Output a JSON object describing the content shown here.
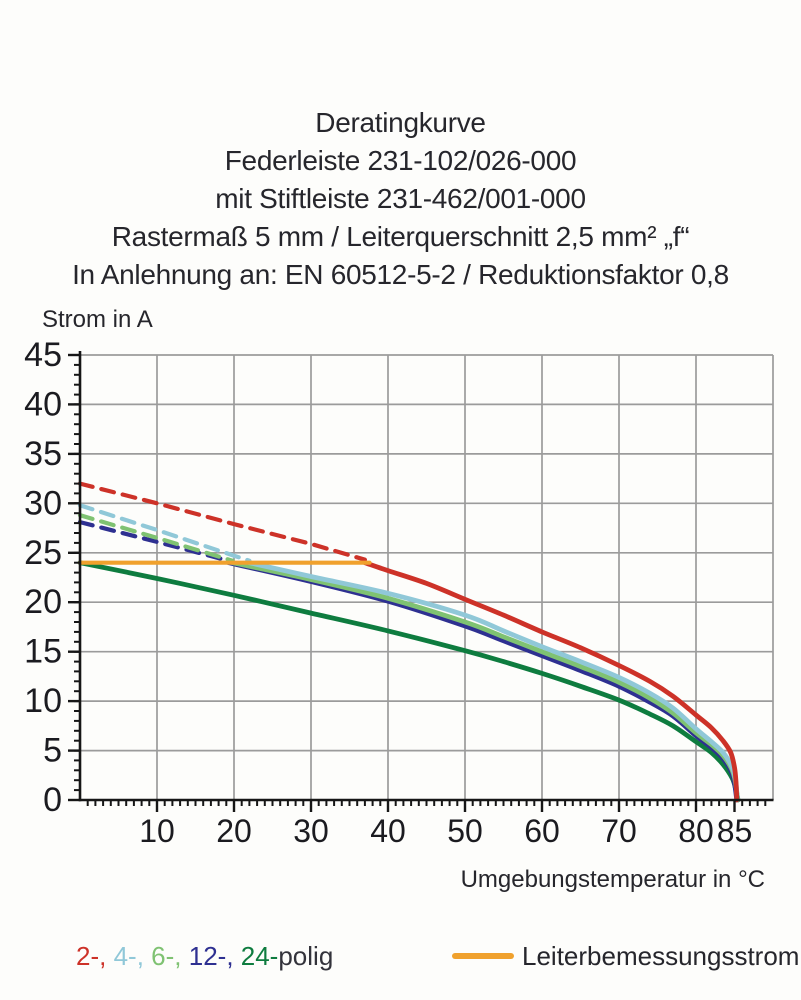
{
  "title": {
    "lines": [
      "Deratingkurve",
      "Federleiste 231-102/026-000",
      "mit Stiftleiste 231-462/001-000",
      "Rastermaß 5 mm / Leiterquerschnitt 2,5 mm² „f“",
      "In Anlehnung an: EN 60512-5-2 / Reduktionsfaktor 0,8"
    ]
  },
  "axes": {
    "y_label": "Strom in A",
    "x_label": "Umgebungstemperatur in °C"
  },
  "legend": {
    "poles": [
      {
        "text": "2-, ",
        "color": "#cd3228"
      },
      {
        "text": "4-, ",
        "color": "#90c8d8"
      },
      {
        "text": "6-, ",
        "color": "#7fc272"
      },
      {
        "text": "12-, ",
        "color": "#2e3091"
      },
      {
        "text": "24-",
        "color": "#0e7c3f"
      },
      {
        "text": "polig",
        "color": "#33333b"
      }
    ],
    "rated_label": "Leiterbemessungsstrom",
    "rated_color": "#f0a12d"
  },
  "chart_data": {
    "type": "line",
    "title": "Deratingkurve Federleiste 231-102/026-000 mit Stiftleiste 231-462/001-000",
    "xlabel": "Umgebungstemperatur in °C",
    "ylabel": "Strom in A",
    "xlim": [
      0,
      90
    ],
    "ylim": [
      0,
      45
    ],
    "grid": true,
    "grid_color": "#9b9b9b",
    "axis_color": "#161616",
    "x_axis": {
      "major_ticks": [
        10,
        20,
        30,
        40,
        50,
        60,
        70,
        80,
        85
      ],
      "minor_step": 1,
      "minor_max": 89,
      "grid_step": 10,
      "grid_max": 80,
      "right_border": 90
    },
    "y_axis": {
      "major_ticks": [
        0,
        5,
        10,
        15,
        20,
        25,
        30,
        35,
        40,
        45
      ],
      "minor_step": 1,
      "grid_step": 5
    },
    "rated_current": {
      "name": "Leiterbemessungsstrom",
      "value": 24,
      "x_range": [
        0,
        37.6
      ],
      "color": "#f0a12d"
    },
    "series": [
      {
        "name": "24-polig",
        "color": "#0e7c3f",
        "solid": [
          [
            0,
            24
          ],
          [
            10,
            22.4
          ],
          [
            20,
            20.7
          ],
          [
            30,
            18.9
          ],
          [
            40,
            17.1
          ],
          [
            50,
            15.1
          ],
          [
            55,
            14
          ],
          [
            60,
            12.8
          ],
          [
            65,
            11.5
          ],
          [
            70,
            10.1
          ],
          [
            74,
            8.7
          ],
          [
            77,
            7.5
          ],
          [
            80,
            5.9
          ],
          [
            82,
            4.8
          ],
          [
            83.5,
            3.6
          ],
          [
            84.7,
            2.2
          ],
          [
            85.2,
            1
          ],
          [
            85.45,
            0
          ]
        ]
      },
      {
        "name": "12-polig",
        "color": "#2e3091",
        "dashed": [
          [
            0,
            28.1
          ],
          [
            10,
            26.1
          ],
          [
            19.3,
            24.2
          ]
        ],
        "solid": [
          [
            19.3,
            24
          ],
          [
            30,
            22.1
          ],
          [
            40,
            20.1
          ],
          [
            50,
            17.6
          ],
          [
            55,
            16.1
          ],
          [
            60,
            14.6
          ],
          [
            65,
            13.1
          ],
          [
            70,
            11.5
          ],
          [
            74,
            9.9
          ],
          [
            77,
            8.5
          ],
          [
            80,
            6.5
          ],
          [
            82,
            5.3
          ],
          [
            83.5,
            4.2
          ],
          [
            84.5,
            3
          ],
          [
            85,
            1.7
          ],
          [
            85.3,
            0
          ]
        ]
      },
      {
        "name": "6-polig",
        "color": "#7fc272",
        "dashed": [
          [
            0,
            28.8
          ],
          [
            10,
            26.5
          ],
          [
            19.8,
            24.2
          ]
        ],
        "solid": [
          [
            19.8,
            24
          ],
          [
            30,
            22.3
          ],
          [
            40,
            20.4
          ],
          [
            50,
            18
          ],
          [
            55,
            16.5
          ],
          [
            60,
            15
          ],
          [
            65,
            13.5
          ],
          [
            70,
            11.9
          ],
          [
            74,
            10.3
          ],
          [
            77,
            8.8
          ],
          [
            80,
            6.8
          ],
          [
            82,
            5.6
          ],
          [
            83.5,
            4.5
          ],
          [
            84.6,
            3.2
          ],
          [
            85.1,
            1.9
          ],
          [
            85.4,
            0
          ]
        ]
      },
      {
        "name": "4-polig",
        "color": "#90c8d8",
        "dashed": [
          [
            0,
            29.8
          ],
          [
            10,
            27.3
          ],
          [
            20,
            24.7
          ],
          [
            22,
            24.2
          ]
        ],
        "solid": [
          [
            22,
            24
          ],
          [
            30,
            22.6
          ],
          [
            40,
            20.9
          ],
          [
            50,
            18.7
          ],
          [
            55,
            17.1
          ],
          [
            60,
            15.5
          ],
          [
            65,
            14
          ],
          [
            70,
            12.4
          ],
          [
            74,
            10.8
          ],
          [
            77,
            9.3
          ],
          [
            80,
            7.2
          ],
          [
            82,
            5.9
          ],
          [
            83.5,
            4.8
          ],
          [
            84.5,
            3.6
          ],
          [
            85.1,
            2.2
          ],
          [
            85.35,
            0
          ]
        ]
      },
      {
        "name": "2-polig",
        "color": "#cd3228",
        "dashed": [
          [
            0,
            32
          ],
          [
            10,
            30
          ],
          [
            20,
            27.9
          ],
          [
            30,
            25.9
          ],
          [
            37,
            24.3
          ]
        ],
        "solid": [
          [
            37,
            24
          ],
          [
            40,
            23.2
          ],
          [
            45,
            21.9
          ],
          [
            50,
            20.3
          ],
          [
            55,
            18.7
          ],
          [
            60,
            17
          ],
          [
            65,
            15.4
          ],
          [
            70,
            13.6
          ],
          [
            74,
            12
          ],
          [
            77,
            10.5
          ],
          [
            80,
            8.6
          ],
          [
            82,
            7.3
          ],
          [
            83.5,
            6
          ],
          [
            84.5,
            4.8
          ],
          [
            85,
            3.3
          ],
          [
            85.2,
            1.8
          ],
          [
            85.3,
            0
          ]
        ]
      }
    ]
  }
}
